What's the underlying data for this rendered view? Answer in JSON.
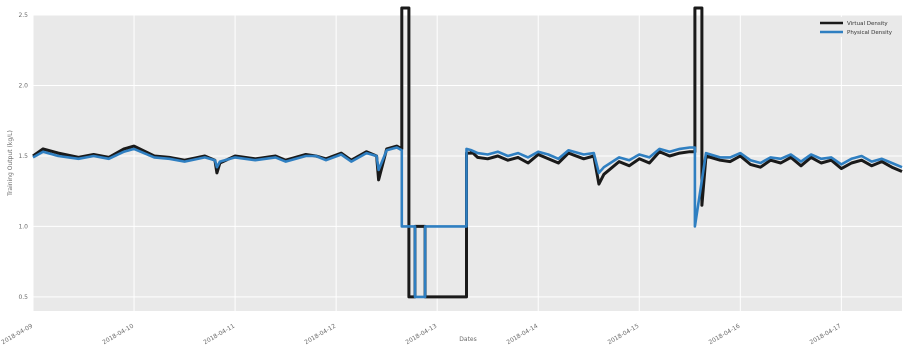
{
  "chart_data": {
    "type": "line",
    "title": "",
    "xlabel": "Dates",
    "ylabel": "Training Output (kg/L)",
    "grid": true,
    "legend_position": "top-right",
    "x_ticks": [
      "2018-04-09",
      "2018-04-10",
      "2018-04-11",
      "2018-04-12",
      "2018-04-13",
      "2018-04-14",
      "2018-04-15",
      "2018-04-16",
      "2018-04-17"
    ],
    "y_ticks": [
      "0.5",
      "1.0",
      "1.5",
      "2.0",
      "2.5"
    ],
    "ylim": [
      0.4,
      2.5
    ],
    "colors": {
      "virtual": "#1a1a1a",
      "physical": "#2f7fc1",
      "panel": "#e9e9e9",
      "grid": "#ffffff"
    },
    "series": [
      {
        "name": "Virtual Density",
        "x": [
          0.0,
          0.1,
          0.25,
          0.45,
          0.6,
          0.75,
          0.9,
          1.0,
          1.2,
          1.35,
          1.5,
          1.7,
          1.8,
          1.82,
          1.85,
          2.0,
          2.2,
          2.4,
          2.5,
          2.7,
          2.8,
          2.9,
          3.05,
          3.15,
          3.3,
          3.4,
          3.42,
          3.5,
          3.6,
          3.65,
          3.65,
          3.72,
          3.72,
          3.78,
          3.78,
          3.88,
          3.88,
          4.29,
          4.29,
          4.34,
          4.34,
          4.4,
          4.5,
          4.6,
          4.7,
          4.8,
          4.9,
          5.0,
          5.1,
          5.2,
          5.3,
          5.45,
          5.55,
          5.6,
          5.65,
          5.8,
          5.9,
          6.0,
          6.1,
          6.2,
          6.3,
          6.4,
          6.5,
          6.55,
          6.55,
          6.62,
          6.62,
          6.66,
          6.8,
          6.9,
          7.0,
          7.1,
          7.2,
          7.3,
          7.4,
          7.5,
          7.6,
          7.7,
          7.8,
          7.9,
          8.0,
          8.1,
          8.2,
          8.3,
          8.4,
          8.5,
          8.6
        ],
        "values": [
          1.5,
          1.55,
          1.52,
          1.49,
          1.51,
          1.49,
          1.55,
          1.57,
          1.5,
          1.49,
          1.47,
          1.5,
          1.47,
          1.38,
          1.45,
          1.5,
          1.48,
          1.5,
          1.47,
          1.51,
          1.5,
          1.48,
          1.52,
          1.47,
          1.53,
          1.5,
          1.33,
          1.55,
          1.57,
          1.55,
          2.55,
          2.55,
          0.5,
          0.5,
          1.0,
          1.0,
          0.5,
          0.5,
          1.52,
          1.52,
          1.53,
          1.49,
          1.48,
          1.5,
          1.47,
          1.49,
          1.45,
          1.51,
          1.48,
          1.45,
          1.52,
          1.48,
          1.5,
          1.3,
          1.37,
          1.46,
          1.43,
          1.48,
          1.45,
          1.53,
          1.5,
          1.52,
          1.53,
          1.53,
          2.55,
          2.55,
          1.15,
          1.5,
          1.47,
          1.46,
          1.5,
          1.44,
          1.42,
          1.47,
          1.45,
          1.49,
          1.43,
          1.49,
          1.45,
          1.47,
          1.41,
          1.45,
          1.47,
          1.43,
          1.46,
          1.42,
          1.39
        ]
      },
      {
        "name": "Physical Density",
        "x": [
          0.0,
          0.1,
          0.25,
          0.45,
          0.6,
          0.75,
          0.9,
          1.0,
          1.2,
          1.35,
          1.5,
          1.7,
          1.8,
          1.82,
          1.85,
          2.0,
          2.2,
          2.4,
          2.5,
          2.7,
          2.8,
          2.9,
          3.05,
          3.15,
          3.3,
          3.4,
          3.42,
          3.5,
          3.6,
          3.65,
          3.65,
          3.78,
          3.78,
          3.88,
          3.88,
          3.88,
          4.29,
          4.29,
          4.34,
          4.4,
          4.5,
          4.6,
          4.7,
          4.8,
          4.9,
          5.0,
          5.1,
          5.2,
          5.3,
          5.45,
          5.55,
          5.6,
          5.65,
          5.8,
          5.9,
          6.0,
          6.1,
          6.2,
          6.3,
          6.4,
          6.5,
          6.55,
          6.55,
          6.66,
          6.8,
          6.9,
          7.0,
          7.1,
          7.2,
          7.3,
          7.4,
          7.5,
          7.6,
          7.7,
          7.8,
          7.9,
          8.0,
          8.1,
          8.2,
          8.3,
          8.4,
          8.5,
          8.6
        ],
        "values": [
          1.49,
          1.53,
          1.5,
          1.48,
          1.5,
          1.48,
          1.53,
          1.55,
          1.49,
          1.48,
          1.46,
          1.49,
          1.47,
          1.42,
          1.46,
          1.49,
          1.47,
          1.49,
          1.46,
          1.5,
          1.5,
          1.47,
          1.51,
          1.46,
          1.52,
          1.5,
          1.4,
          1.54,
          1.56,
          1.54,
          1.0,
          1.0,
          0.5,
          0.5,
          1.0,
          1.0,
          1.0,
          1.55,
          1.54,
          1.52,
          1.51,
          1.53,
          1.5,
          1.52,
          1.49,
          1.53,
          1.51,
          1.48,
          1.54,
          1.51,
          1.52,
          1.38,
          1.42,
          1.49,
          1.47,
          1.51,
          1.49,
          1.55,
          1.53,
          1.55,
          1.56,
          1.56,
          1.0,
          1.52,
          1.49,
          1.49,
          1.52,
          1.47,
          1.45,
          1.49,
          1.48,
          1.51,
          1.46,
          1.51,
          1.48,
          1.49,
          1.44,
          1.48,
          1.5,
          1.46,
          1.48,
          1.45,
          1.42
        ]
      }
    ]
  }
}
